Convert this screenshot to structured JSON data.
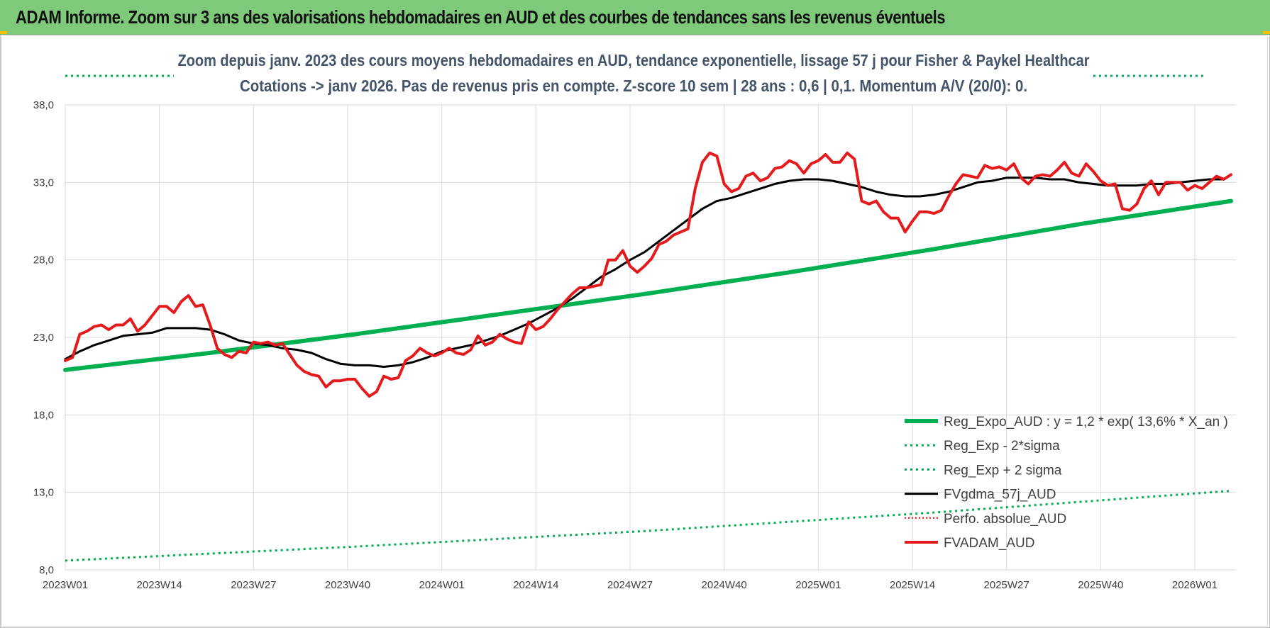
{
  "banner": {
    "title": "ADAM Informe. Zoom sur 3 ans des valorisations hebdomadaires en AUD et des courbes de tendances sans les revenus éventuels"
  },
  "chart_data": {
    "type": "line",
    "title_line1": "Zoom depuis janv. 2023 des cours moyens hebdomadaires en AUD, tendance exponentielle, lissage 57 j pour Fisher & Paykel Healthcar",
    "title_line2": "Cotations -> janv 2026. Pas de revenus pris en compte. Z-score 10 sem | 28 ans : 0,6 | 0,1. Momentum A/V (20/0): 0.",
    "xlabel": "",
    "ylabel": "",
    "ylim": [
      8,
      40
    ],
    "grid": true,
    "legend_position": "bottom-right",
    "y_ticks": [
      "38,0",
      "33,0",
      "28,0",
      "23,0",
      "18,0",
      "13,0",
      "8,0"
    ],
    "y_tick_values": [
      38,
      33,
      28,
      23,
      18,
      13,
      8
    ],
    "x_ticks": [
      "2023W01",
      "2023W14",
      "2023W27",
      "2023W40",
      "2024W01",
      "2024W14",
      "2024W27",
      "2024W40",
      "2025W01",
      "2025W14",
      "2025W27",
      "2025W40",
      "2026W01"
    ],
    "x_tick_index": [
      0,
      13,
      26,
      39,
      52,
      65,
      78,
      91,
      104,
      117,
      130,
      143,
      156
    ],
    "x_max_index": 161,
    "colors": {
      "green": "#00b050",
      "black": "#000000",
      "red": "#e41a1c",
      "red_dotted": "#ff0000",
      "grid": "#d9d9d9"
    },
    "series": [
      {
        "name": "Reg_Expo_AUD : y = 1,2 * exp( 13,6% *  X_an )",
        "style": "green-thick",
        "x": [
          0,
          20,
          40,
          60,
          80,
          100,
          120,
          140,
          161
        ],
        "values": [
          20.9,
          22.0,
          23.2,
          24.5,
          25.8,
          27.2,
          28.7,
          30.3,
          31.8
        ]
      },
      {
        "name": "Reg_Exp - 2*sigma",
        "style": "green-dotted",
        "x": [
          0,
          40,
          80,
          120,
          161
        ],
        "values": [
          8.6,
          9.5,
          10.5,
          11.7,
          13.1
        ]
      },
      {
        "name": "Reg_Exp + 2 sigma",
        "style": "green-dotted",
        "x": [],
        "values": []
      },
      {
        "name": "FVgdma_57j_AUD",
        "style": "black",
        "x": [
          0,
          2,
          4,
          6,
          8,
          10,
          12,
          14,
          16,
          18,
          20,
          22,
          24,
          26,
          28,
          30,
          32,
          34,
          36,
          38,
          40,
          42,
          44,
          46,
          48,
          50,
          52,
          54,
          56,
          58,
          60,
          62,
          64,
          66,
          68,
          70,
          72,
          74,
          76,
          78,
          80,
          82,
          84,
          86,
          88,
          90,
          92,
          94,
          96,
          98,
          100,
          102,
          104,
          106,
          108,
          110,
          112,
          114,
          116,
          118,
          120,
          122,
          124,
          126,
          128,
          130,
          132,
          134,
          136,
          138,
          140,
          142,
          144,
          146,
          148,
          150,
          152,
          154,
          156,
          158,
          160
        ],
        "values": [
          21.6,
          22.1,
          22.5,
          22.8,
          23.1,
          23.2,
          23.3,
          23.6,
          23.6,
          23.6,
          23.5,
          23.2,
          22.8,
          22.6,
          22.5,
          22.3,
          22.2,
          22.0,
          21.6,
          21.3,
          21.2,
          21.2,
          21.1,
          21.2,
          21.4,
          21.7,
          22.1,
          22.3,
          22.5,
          22.8,
          23.1,
          23.5,
          23.9,
          24.4,
          24.9,
          25.5,
          26.2,
          26.9,
          27.4,
          28.0,
          28.5,
          29.2,
          29.9,
          30.6,
          31.3,
          31.8,
          32.0,
          32.3,
          32.6,
          32.9,
          33.1,
          33.2,
          33.2,
          33.1,
          32.9,
          32.7,
          32.4,
          32.2,
          32.1,
          32.1,
          32.2,
          32.4,
          32.7,
          33.0,
          33.1,
          33.3,
          33.3,
          33.3,
          33.2,
          33.2,
          33.0,
          32.9,
          32.8,
          32.8,
          32.8,
          32.9,
          32.9,
          33.0,
          33.1,
          33.2,
          33.2
        ]
      },
      {
        "name": "Perfo. absolue_AUD",
        "style": "red-dotted",
        "x": [],
        "values": []
      },
      {
        "name": "FVADAM_AUD",
        "style": "red",
        "x": [
          0,
          1,
          2,
          3,
          4,
          5,
          6,
          7,
          8,
          9,
          10,
          11,
          12,
          13,
          14,
          15,
          16,
          17,
          18,
          19,
          20,
          21,
          22,
          23,
          24,
          25,
          26,
          27,
          28,
          29,
          30,
          31,
          32,
          33,
          34,
          35,
          36,
          37,
          38,
          39,
          40,
          41,
          42,
          43,
          44,
          45,
          46,
          47,
          48,
          49,
          50,
          51,
          52,
          53,
          54,
          55,
          56,
          57,
          58,
          59,
          60,
          61,
          62,
          63,
          64,
          65,
          66,
          67,
          68,
          69,
          70,
          71,
          72,
          73,
          74,
          75,
          76,
          77,
          78,
          79,
          80,
          81,
          82,
          83,
          84,
          85,
          86,
          87,
          88,
          89,
          90,
          91,
          92,
          93,
          94,
          95,
          96,
          97,
          98,
          99,
          100,
          101,
          102,
          103,
          104,
          105,
          106,
          107,
          108,
          109,
          110,
          111,
          112,
          113,
          114,
          115,
          116,
          117,
          118,
          119,
          120,
          121,
          122,
          123,
          124,
          125,
          126,
          127,
          128,
          129,
          130,
          131,
          132,
          133,
          134,
          135,
          136,
          137,
          138,
          139,
          140,
          141,
          142,
          143,
          144,
          145,
          146,
          147,
          148,
          149,
          150,
          151,
          152,
          153,
          154,
          155,
          156,
          157,
          158,
          159,
          160,
          161
        ],
        "values": [
          21.5,
          21.7,
          23.2,
          23.4,
          23.7,
          23.8,
          23.5,
          23.8,
          23.8,
          24.2,
          23.4,
          23.8,
          24.4,
          25.0,
          25.0,
          24.6,
          25.3,
          25.7,
          25.0,
          25.1,
          23.8,
          22.3,
          21.9,
          21.7,
          22.1,
          22.0,
          22.7,
          22.6,
          22.7,
          22.5,
          22.6,
          21.9,
          21.2,
          20.8,
          20.6,
          20.5,
          19.8,
          20.2,
          20.2,
          20.3,
          20.3,
          19.7,
          19.2,
          19.5,
          20.5,
          20.3,
          20.4,
          21.5,
          21.8,
          22.3,
          22.0,
          21.8,
          22.0,
          22.3,
          22.0,
          21.9,
          22.2,
          23.1,
          22.5,
          22.7,
          23.2,
          22.9,
          22.7,
          22.6,
          24.0,
          23.5,
          23.7,
          24.2,
          24.8,
          25.3,
          25.8,
          26.2,
          26.2,
          26.3,
          26.4,
          28.0,
          28.0,
          28.6,
          27.6,
          27.2,
          27.6,
          28.1,
          29.0,
          29.2,
          29.6,
          29.8,
          30.0,
          32.6,
          34.3,
          34.9,
          34.7,
          32.9,
          32.4,
          32.6,
          33.4,
          33.6,
          33.1,
          33.3,
          33.9,
          34.0,
          34.4,
          34.2,
          33.6,
          34.2,
          34.4,
          34.8,
          34.3,
          34.3,
          34.9,
          34.5,
          31.8,
          31.6,
          31.8,
          31.1,
          30.7,
          30.7,
          29.8,
          30.5,
          31.1,
          31.1,
          31.0,
          31.2,
          32.1,
          32.9,
          33.5,
          33.4,
          33.3,
          34.1,
          33.9,
          34.0,
          33.8,
          34.2,
          33.3,
          32.9,
          33.4,
          33.5,
          33.4,
          33.8,
          34.3,
          33.6,
          33.4,
          34.2,
          33.7,
          33.1,
          32.8,
          32.9,
          31.3,
          31.2,
          31.6,
          32.6,
          33.1,
          32.2,
          33.0,
          33.0,
          33.0,
          32.5,
          32.8,
          32.6,
          33.0,
          33.4,
          33.2,
          33.5
        ]
      }
    ]
  }
}
